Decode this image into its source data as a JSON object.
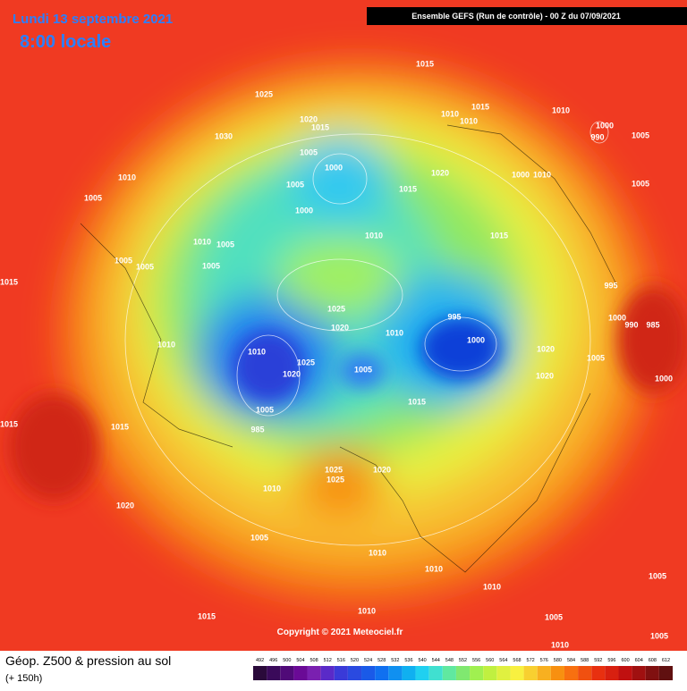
{
  "header": {
    "date": "Lundi 13 septembre 2021",
    "time": "8:00 locale",
    "run": "Ensemble GEFS  (Run de contrôle)  - 00 Z du 07/09/2021"
  },
  "footer": {
    "title": "Géop. Z500 & pression au sol",
    "lead": "(+ 150h)",
    "copyright": "Copyright © 2021 Meteociel.fr"
  },
  "colorbar": {
    "values": [
      492,
      496,
      500,
      504,
      508,
      512,
      516,
      520,
      524,
      528,
      532,
      536,
      540,
      544,
      548,
      552,
      556,
      560,
      564,
      568,
      572,
      576,
      580,
      584,
      588,
      592,
      596,
      600,
      604,
      608,
      612
    ],
    "colors": [
      "#2a0a3a",
      "#3a0a5a",
      "#500a78",
      "#6a0a96",
      "#7a20b0",
      "#5a2ac8",
      "#3a3ad8",
      "#2a4ae0",
      "#1a5ae8",
      "#1070f0",
      "#1090f0",
      "#10b0f0",
      "#20d0f0",
      "#40e0d0",
      "#60e8a0",
      "#80e870",
      "#a0f050",
      "#c0f040",
      "#e0f040",
      "#f8f040",
      "#f8d030",
      "#f8b020",
      "#f89010",
      "#f87010",
      "#f05010",
      "#e83010",
      "#d82010",
      "#c01010",
      "#a01010",
      "#801010",
      "#601010"
    ]
  },
  "pressure_labels": [
    1015,
    1025,
    1030,
    1020,
    1015,
    1005,
    1000,
    1005,
    1000,
    1010,
    1015,
    1010,
    1010,
    1000,
    990,
    1005,
    1020,
    1015,
    1000,
    1010,
    1005,
    1010,
    1005,
    1010,
    1015,
    1010,
    1005,
    1005,
    1005,
    1005,
    1015,
    995,
    1025,
    1020,
    995,
    1000,
    1010,
    1000,
    990,
    985,
    1010,
    1010,
    1025,
    1020,
    1005,
    1020,
    1005,
    1020,
    1000,
    1015,
    1005,
    985,
    1015,
    1015,
    1025,
    1025,
    1020,
    1010,
    1020,
    1005,
    1010,
    1010,
    1005,
    1010,
    1010,
    1015,
    1005,
    1010,
    1005,
    1010
  ]
}
